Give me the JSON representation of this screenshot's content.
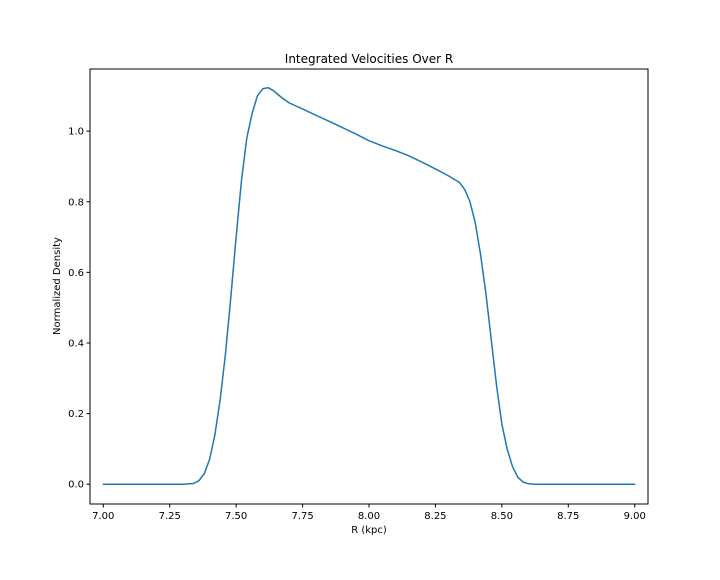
{
  "chart_data": {
    "type": "line",
    "title": "Integrated Velocities Over R",
    "xlabel": "R (kpc)",
    "ylabel": "Normalized Density",
    "xlim": [
      6.95,
      9.05
    ],
    "ylim": [
      -0.056,
      1.176
    ],
    "x_ticks": [
      7.0,
      7.25,
      7.5,
      7.75,
      8.0,
      8.25,
      8.5,
      8.75,
      9.0
    ],
    "x_tick_labels": [
      "7.00",
      "7.25",
      "7.50",
      "7.75",
      "8.00",
      "8.25",
      "8.50",
      "8.75",
      "9.00"
    ],
    "y_ticks": [
      0.0,
      0.2,
      0.4,
      0.6,
      0.8,
      1.0
    ],
    "y_tick_labels": [
      "0.0",
      "0.2",
      "0.4",
      "0.6",
      "0.8",
      "1.0"
    ],
    "grid": false,
    "legend": "none",
    "series": [
      {
        "color": "#1f77b4",
        "x": [
          7.0,
          7.1,
          7.2,
          7.3,
          7.34,
          7.36,
          7.38,
          7.4,
          7.42,
          7.44,
          7.46,
          7.48,
          7.5,
          7.52,
          7.54,
          7.56,
          7.58,
          7.6,
          7.62,
          7.64,
          7.66,
          7.68,
          7.7,
          7.72,
          7.75,
          7.8,
          7.85,
          7.9,
          7.95,
          8.0,
          8.05,
          8.1,
          8.15,
          8.2,
          8.25,
          8.3,
          8.34,
          8.36,
          8.38,
          8.4,
          8.42,
          8.44,
          8.46,
          8.48,
          8.5,
          8.52,
          8.54,
          8.56,
          8.58,
          8.6,
          8.62,
          8.64,
          8.66,
          8.7,
          8.8,
          9.0
        ],
        "y": [
          0.0,
          0.0,
          0.0,
          0.0,
          0.002,
          0.01,
          0.03,
          0.07,
          0.14,
          0.24,
          0.37,
          0.53,
          0.7,
          0.86,
          0.98,
          1.05,
          1.1,
          1.12,
          1.123,
          1.115,
          1.102,
          1.09,
          1.08,
          1.073,
          1.063,
          1.045,
          1.028,
          1.01,
          0.992,
          0.973,
          0.958,
          0.945,
          0.93,
          0.912,
          0.893,
          0.873,
          0.855,
          0.835,
          0.8,
          0.74,
          0.65,
          0.54,
          0.41,
          0.28,
          0.17,
          0.1,
          0.05,
          0.02,
          0.006,
          0.0015,
          0.0004,
          0.0001,
          0.0,
          0.0,
          0.0,
          0.0
        ]
      }
    ]
  }
}
